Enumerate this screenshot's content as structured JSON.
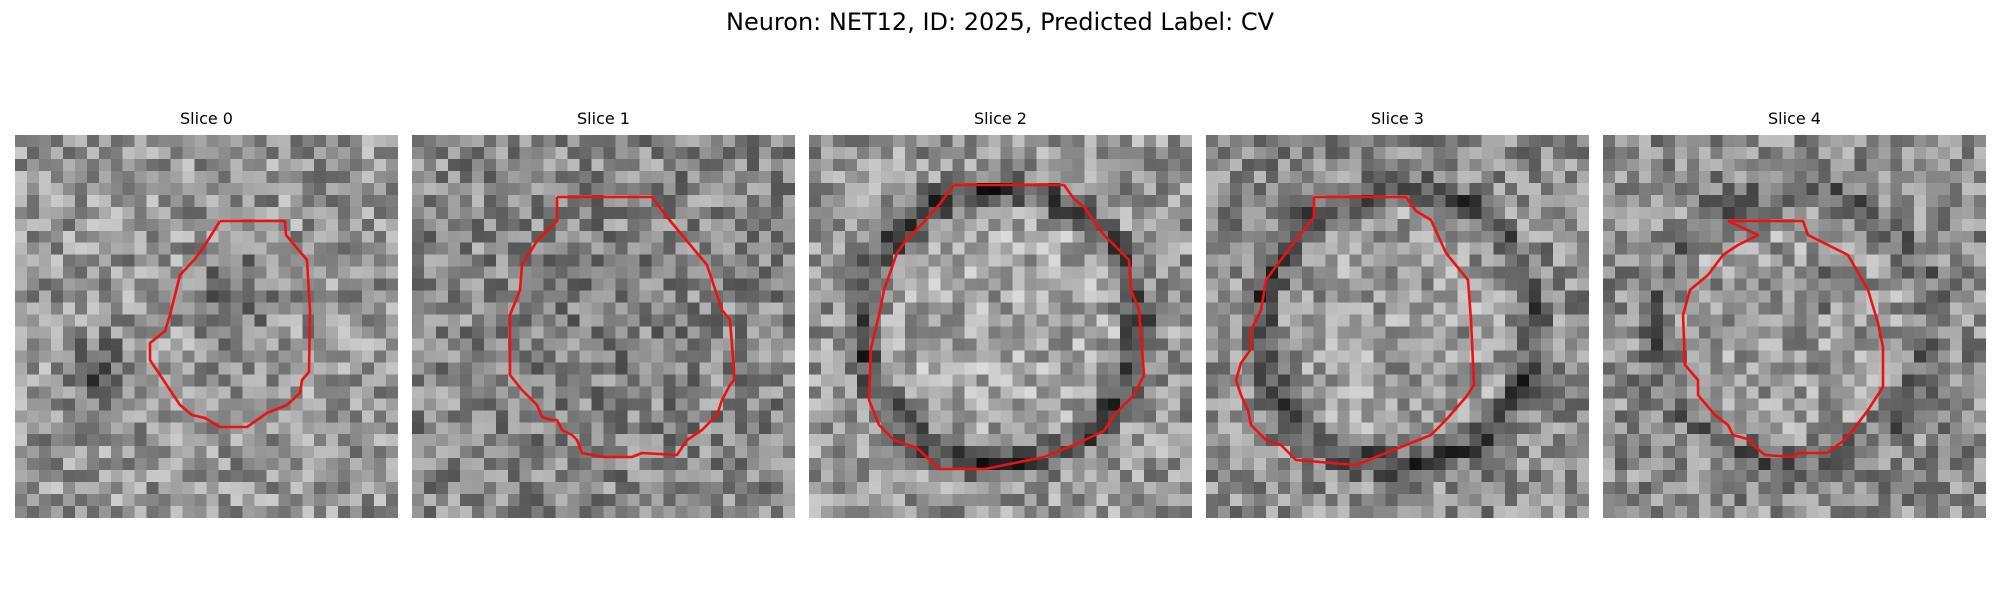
{
  "figure": {
    "title": "Neuron: NET12, ID: 2025, Predicted Label: CV"
  },
  "colors": {
    "contour": "#ee1111",
    "background": "#ffffff"
  },
  "slices": [
    {
      "title": "Slice 0"
    },
    {
      "title": "Slice 1"
    },
    {
      "title": "Slice 2"
    },
    {
      "title": "Slice 3"
    },
    {
      "title": "Slice 4"
    }
  ]
}
